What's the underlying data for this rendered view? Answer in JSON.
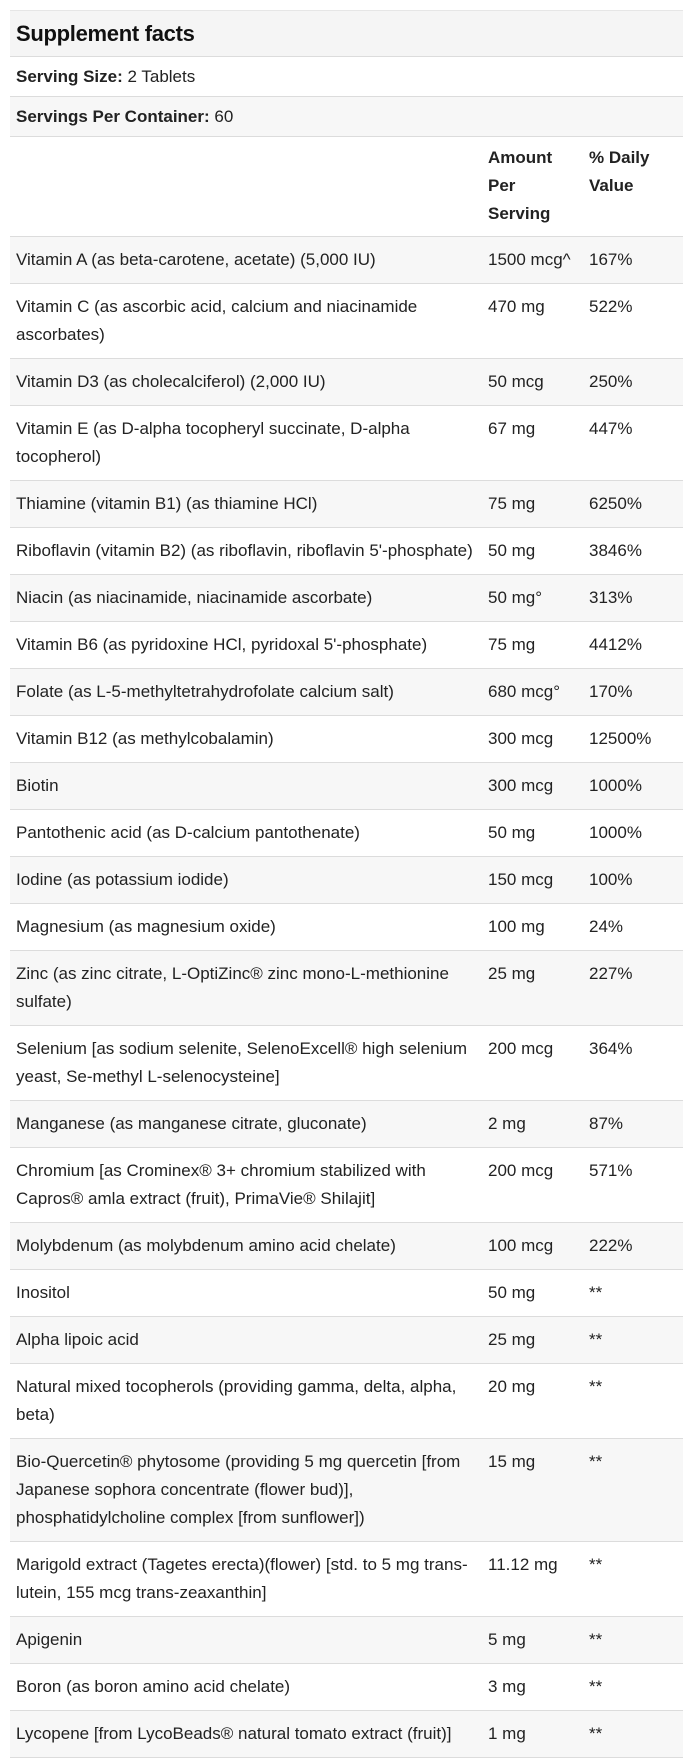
{
  "title": "Supplement facts",
  "serving_size": {
    "label": "Serving Size:",
    "value": "2 Tablets"
  },
  "servings_per_container": {
    "label": "Servings Per Container:",
    "value": "60"
  },
  "columns": {
    "name": "",
    "amount": "Amount Per Serving",
    "daily_value": "% Daily Value"
  },
  "rows": [
    {
      "name": "Vitamin A (as beta-carotene, acetate) (5,000 IU)",
      "amount": "1500 mcg^",
      "dv": "167%"
    },
    {
      "name": "Vitamin C (as ascorbic acid, calcium and niacinamide ascorbates)",
      "amount": "470 mg",
      "dv": "522%"
    },
    {
      "name": "Vitamin D3 (as cholecalciferol) (2,000 IU)",
      "amount": "50 mcg",
      "dv": "250%"
    },
    {
      "name": "Vitamin E (as D-alpha tocopheryl succinate, D-alpha tocopherol)",
      "amount": "67 mg",
      "dv": "447%"
    },
    {
      "name": "Thiamine (vitamin B1) (as thiamine HCl)",
      "amount": "75 mg",
      "dv": "6250%"
    },
    {
      "name": "Riboflavin (vitamin B2) (as riboflavin, riboflavin 5'-phosphate)",
      "amount": "50 mg",
      "dv": "3846%"
    },
    {
      "name": "Niacin (as niacinamide, niacinamide ascorbate)",
      "amount": "50 mg°",
      "dv": "313%"
    },
    {
      "name": "Vitamin B6 (as pyridoxine HCl, pyridoxal 5'-phosphate)",
      "amount": "75 mg",
      "dv": "4412%"
    },
    {
      "name": "Folate (as L-5-methyltetrahydrofolate calcium salt)",
      "amount": "680 mcg°",
      "dv": "170%"
    },
    {
      "name": "Vitamin B12 (as methylcobalamin)",
      "amount": "300 mcg",
      "dv": "12500%"
    },
    {
      "name": "Biotin",
      "amount": "300 mcg",
      "dv": "1000%"
    },
    {
      "name": "Pantothenic acid (as D-calcium pantothenate)",
      "amount": "50 mg",
      "dv": "1000%"
    },
    {
      "name": "Iodine (as potassium iodide)",
      "amount": "150 mcg",
      "dv": "100%"
    },
    {
      "name": "Magnesium (as magnesium oxide)",
      "amount": "100 mg",
      "dv": "24%"
    },
    {
      "name": "Zinc (as zinc citrate, L-OptiZinc® zinc mono-L-methionine sulfate)",
      "amount": "25 mg",
      "dv": "227%"
    },
    {
      "name": "Selenium [as sodium selenite, SelenoExcell® high selenium yeast, Se-methyl L-selenocysteine]",
      "amount": "200 mcg",
      "dv": "364%"
    },
    {
      "name": "Manganese (as manganese citrate, gluconate)",
      "amount": "2 mg",
      "dv": "87%"
    },
    {
      "name": "Chromium [as Crominex® 3+ chromium stabilized with Capros® amla extract (fruit), PrimaVie® Shilajit]",
      "amount": "200 mcg",
      "dv": "571%"
    },
    {
      "name": "Molybdenum (as molybdenum amino acid chelate)",
      "amount": "100 mcg",
      "dv": "222%"
    },
    {
      "name": "Inositol",
      "amount": "50 mg",
      "dv": "**"
    },
    {
      "name": "Alpha lipoic acid",
      "amount": "25 mg",
      "dv": "**"
    },
    {
      "name": "Natural mixed tocopherols (providing gamma, delta, alpha, beta)",
      "amount": "20 mg",
      "dv": "**"
    },
    {
      "name": "Bio-Quercetin® phytosome (providing 5 mg quercetin [from Japanese sophora concentrate (flower bud)], phosphatidylcholine complex [from sunflower])",
      "amount": "15 mg",
      "dv": "**"
    },
    {
      "name": "Marigold extract (Tagetes erecta)(flower) [std. to 5 mg trans-lutein, 155 mcg trans-zeaxanthin]",
      "amount": "11.12 mg",
      "dv": "**"
    },
    {
      "name": "Apigenin",
      "amount": "5 mg",
      "dv": "**"
    },
    {
      "name": "Boron (as boron amino acid chelate)",
      "amount": "3 mg",
      "dv": "**"
    },
    {
      "name": "Lycopene [from LycoBeads® natural tomato extract (fruit)]",
      "amount": "1 mg",
      "dv": "**"
    }
  ]
}
